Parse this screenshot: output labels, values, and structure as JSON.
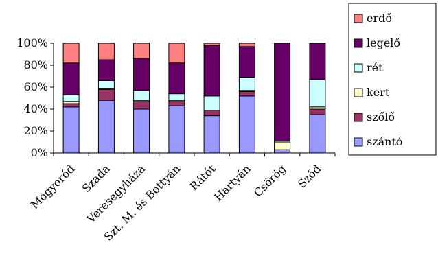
{
  "chart_data": {
    "type": "bar",
    "stacked": true,
    "percent": true,
    "categories": [
      "Mogyoród",
      "Szada",
      "Veresegyháza",
      "Szt. M. és Bottyán",
      "Rátót",
      "Hartyán",
      "Csörög",
      "Sződ"
    ],
    "series": [
      {
        "name": "szántó",
        "color": "#9999ff",
        "values": [
          42,
          48,
          40,
          43,
          34,
          52,
          3,
          35
        ]
      },
      {
        "name": "szőlő",
        "color": "#993366",
        "values": [
          3,
          10,
          7,
          4,
          5,
          4,
          0,
          5
        ]
      },
      {
        "name": "kert",
        "color": "#ffffcc",
        "values": [
          2,
          1,
          1,
          1,
          0,
          1,
          7,
          2
        ]
      },
      {
        "name": "rét",
        "color": "#ccffff",
        "values": [
          6,
          7,
          9,
          6,
          13,
          12,
          1,
          25
        ]
      },
      {
        "name": "legelő",
        "color": "#660066",
        "values": [
          29,
          19,
          29,
          28,
          46,
          28,
          89,
          33
        ]
      },
      {
        "name": "erdő",
        "color": "#ff8080",
        "values": [
          18,
          15,
          14,
          18,
          2,
          3,
          0,
          0
        ]
      }
    ],
    "yticks": [
      "0%",
      "20%",
      "40%",
      "60%",
      "80%",
      "100%"
    ],
    "ylim": [
      0,
      100
    ],
    "legend_position": "right",
    "grid": false
  }
}
